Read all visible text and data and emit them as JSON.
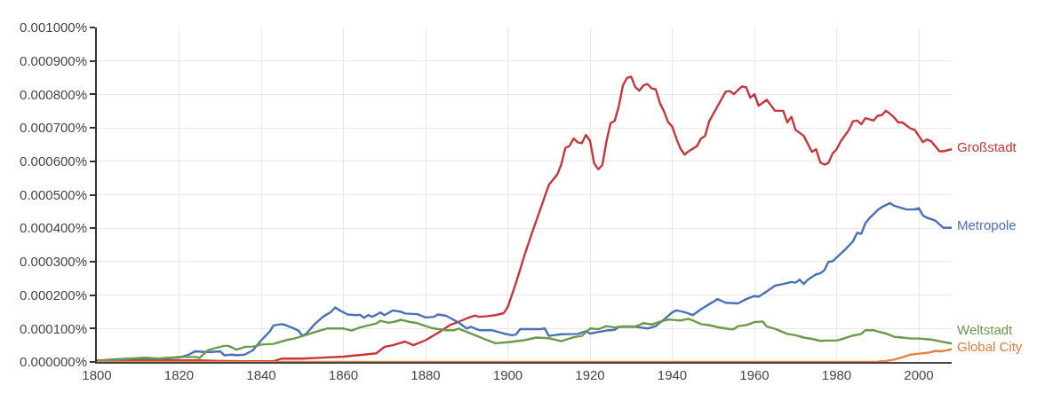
{
  "chart_data": {
    "type": "line",
    "xlim": [
      1800,
      2008
    ],
    "xticks": [
      1800,
      1820,
      1840,
      1860,
      1880,
      1900,
      1920,
      1940,
      1960,
      1980,
      2000
    ],
    "ylim": [
      0,
      0.001
    ],
    "yticks": [
      {
        "value": 0,
        "label": "0.000000%"
      },
      {
        "value": 0.0001,
        "label": "0.000100%"
      },
      {
        "value": 0.0002,
        "label": "0.000200%"
      },
      {
        "value": 0.0003,
        "label": "0.000300%"
      },
      {
        "value": 0.0004,
        "label": "0.000400%"
      },
      {
        "value": 0.0005,
        "label": "0.000500%"
      },
      {
        "value": 0.0006,
        "label": "0.000600%"
      },
      {
        "value": 0.0007,
        "label": "0.000700%"
      },
      {
        "value": 0.0008,
        "label": "0.000800%"
      },
      {
        "value": 0.0009,
        "label": "0.000900%"
      },
      {
        "value": 0.001,
        "label": "0.001000%"
      }
    ],
    "grid": true,
    "legend": false,
    "line_style": "solid",
    "series": [
      {
        "name": "Großstadt",
        "color": "#c9363a",
        "x": [
          1800,
          1810,
          1820,
          1825,
          1830,
          1835,
          1843,
          1845,
          1850,
          1855,
          1860,
          1865,
          1868,
          1870,
          1872,
          1875,
          1877,
          1880,
          1883,
          1886,
          1888,
          1890,
          1892,
          1893,
          1895,
          1897,
          1899,
          1900,
          1902,
          1904,
          1906,
          1908,
          1910,
          1912,
          1913,
          1914,
          1915,
          1916,
          1917,
          1918,
          1919,
          1920,
          1921,
          1922,
          1923,
          1924,
          1925,
          1926,
          1927,
          1928,
          1929,
          1930,
          1931,
          1932,
          1933,
          1934,
          1935,
          1936,
          1937,
          1938,
          1939,
          1940,
          1941,
          1942,
          1943,
          1944,
          1946,
          1947,
          1948,
          1949,
          1951,
          1953,
          1954,
          1955,
          1956,
          1957,
          1958,
          1959,
          1960,
          1961,
          1963,
          1965,
          1967,
          1968,
          1969,
          1970,
          1972,
          1973,
          1974,
          1975,
          1976,
          1977,
          1978,
          1979,
          1980,
          1981,
          1983,
          1984,
          1985,
          1986,
          1987,
          1989,
          1990,
          1991,
          1992,
          1993,
          1994,
          1995,
          1996,
          1998,
          1999,
          2000,
          2001,
          2002,
          2003,
          2004,
          2005,
          2006,
          2008
        ],
        "values": [
          5e-06,
          5e-06,
          5e-06,
          5e-06,
          3e-06,
          2e-06,
          2e-06,
          1e-05,
          1e-05,
          1.3e-05,
          1.6e-05,
          2.2e-05,
          2.6e-05,
          4.5e-05,
          5e-05,
          6.1e-05,
          5e-05,
          6.5e-05,
          8.7e-05,
          0.000111,
          0.00012,
          0.00013,
          0.000139,
          0.000135,
          0.000137,
          0.00014,
          0.000146,
          0.000165,
          0.000237,
          0.000317,
          0.00039,
          0.00046,
          0.00053,
          0.00056,
          0.00059,
          0.00064,
          0.000646,
          0.000668,
          0.000657,
          0.000654,
          0.000679,
          0.000661,
          0.000594,
          0.000576,
          0.000589,
          0.00066,
          0.000714,
          0.000721,
          0.000765,
          0.000827,
          0.000849,
          0.000853,
          0.000822,
          0.000811,
          0.000827,
          0.000831,
          0.000818,
          0.000815,
          0.000774,
          0.000749,
          0.000717,
          0.000704,
          0.000668,
          0.000638,
          0.00062,
          0.00063,
          0.000645,
          0.000668,
          0.000676,
          0.00072,
          0.000764,
          0.000808,
          0.00081,
          0.000801,
          0.000813,
          0.000824,
          0.000821,
          0.00079,
          0.000801,
          0.000766,
          0.000784,
          0.000751,
          0.000751,
          0.000716,
          0.000733,
          0.000694,
          0.000676,
          0.000652,
          0.000628,
          0.000636,
          0.000597,
          0.00059,
          0.000595,
          0.000623,
          0.000636,
          0.00066,
          0.000694,
          0.00072,
          0.000722,
          0.000711,
          0.000729,
          0.000722,
          0.000736,
          0.000738,
          0.000751,
          0.000742,
          0.000731,
          0.000716,
          0.000716,
          0.000698,
          0.000694,
          0.000676,
          0.000657,
          0.000665,
          0.00066,
          0.000645,
          0.00063,
          0.00063,
          0.000636
        ]
      },
      {
        "name": "Metropole",
        "color": "#4a70b8",
        "x": [
          1800,
          1805,
          1810,
          1815,
          1820,
          1822,
          1824,
          1826,
          1828,
          1830,
          1831,
          1833,
          1834,
          1836,
          1838,
          1840,
          1842,
          1843,
          1845,
          1846,
          1848,
          1849,
          1850,
          1851,
          1853,
          1855,
          1857,
          1858,
          1859,
          1861,
          1863,
          1864,
          1865,
          1866,
          1867,
          1869,
          1870,
          1872,
          1874,
          1875,
          1878,
          1880,
          1882,
          1883,
          1885,
          1888,
          1890,
          1891,
          1893,
          1896,
          1899,
          1901,
          1902,
          1903,
          1908,
          1909,
          1910,
          1913,
          1917,
          1919,
          1920,
          1924,
          1926,
          1927,
          1931,
          1934,
          1936,
          1938,
          1940,
          1941,
          1943,
          1945,
          1947,
          1950,
          1951,
          1953,
          1956,
          1958,
          1960,
          1961,
          1963,
          1965,
          1967,
          1969,
          1970,
          1971,
          1972,
          1973,
          1975,
          1976,
          1977,
          1978,
          1979,
          1981,
          1982,
          1984,
          1985,
          1986,
          1987,
          1988,
          1990,
          1991,
          1993,
          1994,
          1997,
          1999,
          2000,
          2001,
          2002,
          2004,
          2006,
          2008
        ],
        "values": [
          4e-06,
          8e-06,
          1e-05,
          1e-05,
          1.3e-05,
          2e-05,
          3.2e-05,
          3e-05,
          3e-05,
          3.2e-05,
          2e-05,
          2.2e-05,
          2e-05,
          2.2e-05,
          3.5e-05,
          6.5e-05,
          9e-05,
          0.000109,
          0.000113,
          0.00011,
          0.0001,
          9.4e-05,
          7.8e-05,
          8.5e-05,
          0.000113,
          0.000135,
          0.00015,
          0.000163,
          0.000155,
          0.000142,
          0.00014,
          0.000141,
          0.000132,
          0.00014,
          0.000135,
          0.000148,
          0.00014,
          0.000154,
          0.00015,
          0.000145,
          0.000143,
          0.000133,
          0.000135,
          0.000142,
          0.000138,
          0.000118,
          0.0001,
          0.000105,
          9.5e-05,
          9.5e-05,
          8.5e-05,
          8e-05,
          8.2e-05,
          9.8e-05,
          9.8e-05,
          0.0001,
          7.8e-05,
          8.3e-05,
          8.4e-05,
          9.2e-05,
          8.5e-05,
          9.4e-05,
          9.6e-05,
          0.000105,
          0.000105,
          0.0001,
          0.000107,
          0.000127,
          0.000148,
          0.000154,
          0.000149,
          0.00014,
          0.000158,
          0.00018,
          0.000188,
          0.000177,
          0.000175,
          0.000188,
          0.000197,
          0.000195,
          0.000211,
          0.000228,
          0.000233,
          0.000239,
          0.000237,
          0.000246,
          0.000233,
          0.000246,
          0.000262,
          0.000265,
          0.000274,
          0.000299,
          0.000301,
          0.000324,
          0.000335,
          0.000361,
          0.000386,
          0.000383,
          0.000415,
          0.00043,
          0.000454,
          0.000463,
          0.000475,
          0.000467,
          0.000456,
          0.000456,
          0.00046,
          0.000438,
          0.000431,
          0.000423,
          0.000401,
          0.000401
        ]
      },
      {
        "name": "Weltstadt",
        "color": "#6b9a4b",
        "x": [
          1800,
          1805,
          1808,
          1812,
          1815,
          1820,
          1824,
          1825,
          1827,
          1829,
          1831,
          1832,
          1834,
          1836,
          1838,
          1840,
          1843,
          1846,
          1848,
          1850,
          1853,
          1856,
          1860,
          1862,
          1864,
          1866,
          1868,
          1869,
          1871,
          1873,
          1874,
          1876,
          1878,
          1880,
          1882,
          1885,
          1887,
          1888,
          1890,
          1893,
          1895,
          1897,
          1900,
          1904,
          1907,
          1910,
          1913,
          1916,
          1918,
          1920,
          1922,
          1924,
          1926,
          1928,
          1931,
          1933,
          1935,
          1937,
          1939,
          1942,
          1944,
          1945,
          1947,
          1949,
          1951,
          1954,
          1955,
          1956,
          1958,
          1960,
          1962,
          1963,
          1965,
          1968,
          1970,
          1972,
          1974,
          1976,
          1978,
          1980,
          1982,
          1984,
          1986,
          1987,
          1989,
          1990,
          1992,
          1994,
          1996,
          1998,
          2000,
          2003,
          2005,
          2008
        ],
        "values": [
          4e-06,
          6e-06,
          1e-05,
          1.3e-05,
          1e-05,
          1.5e-05,
          1.5e-05,
          1.2e-05,
          3.5e-05,
          4.2e-05,
          4.8e-05,
          4.8e-05,
          3.7e-05,
          4.5e-05,
          4.6e-05,
          5.2e-05,
          5.4e-05,
          6.5e-05,
          7e-05,
          7.7e-05,
          8.9e-05,
          0.0001,
          0.0001,
          9.4e-05,
          0.000103,
          0.000109,
          0.000115,
          0.000123,
          0.000117,
          0.000122,
          0.000126,
          0.00012,
          0.000116,
          0.000107,
          0.0001,
          9.5e-05,
          9.5e-05,
          0.0001,
          9e-05,
          7.5e-05,
          6.5e-05,
          5.6e-05,
          5.9e-05,
          6.5e-05,
          7.3e-05,
          7.1e-05,
          6.2e-05,
          7.4e-05,
          7.8e-05,
          0.0001,
          9.8e-05,
          0.000107,
          0.000103,
          0.000106,
          0.000106,
          0.000116,
          0.000112,
          0.00012,
          0.000127,
          0.000124,
          0.000129,
          0.000124,
          0.000113,
          0.00011,
          0.000104,
          9.8e-05,
          9.8e-05,
          0.000107,
          0.00011,
          0.000119,
          0.000121,
          0.000106,
          9.9e-05,
          8.4e-05,
          8e-05,
          7.3e-05,
          6.9e-05,
          6.3e-05,
          6.4e-05,
          6.4e-05,
          7.1e-05,
          7.9e-05,
          8.4e-05,
          9.5e-05,
          9.5e-05,
          9.1e-05,
          8.5e-05,
          7.5e-05,
          7.3e-05,
          7e-05,
          7e-05,
          6.7e-05,
          6.2e-05,
          5.5e-05
        ]
      },
      {
        "name": "Global City",
        "color": "#e3823d",
        "x": [
          1800,
          1850,
          1900,
          1950,
          1985,
          1990,
          1992,
          1994,
          1996,
          1998,
          2000,
          2002,
          2004,
          2005,
          2006,
          2008
        ],
        "values": [
          0,
          0,
          0,
          0,
          0,
          1e-06,
          3e-06,
          7e-06,
          1.4e-05,
          2.2e-05,
          2.5e-05,
          2.7e-05,
          3.3e-05,
          3.2e-05,
          3.3e-05,
          3.8e-05
        ]
      }
    ]
  }
}
